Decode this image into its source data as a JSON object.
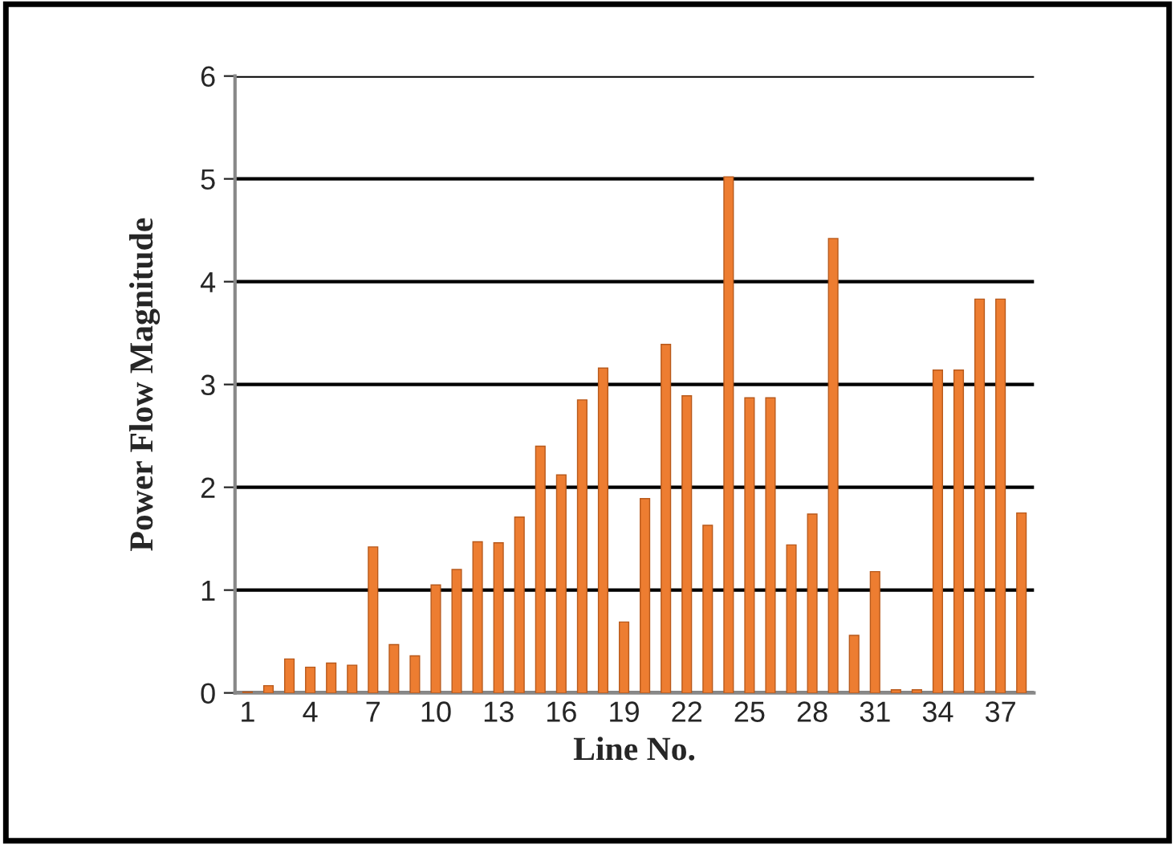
{
  "chart_data": {
    "type": "bar",
    "xlabel": "Line No.",
    "ylabel": "Power Flow Magnitude",
    "categories": [
      "1",
      null,
      null,
      "4",
      null,
      null,
      "7",
      null,
      null,
      "10",
      null,
      null,
      "13",
      null,
      null,
      "16",
      null,
      null,
      "19",
      null,
      null,
      "22",
      null,
      null,
      "25",
      null,
      null,
      "28",
      null,
      null,
      "31",
      null,
      null,
      "34",
      null,
      null,
      "37",
      null
    ],
    "values": [
      0.01,
      0.07,
      0.33,
      0.25,
      0.29,
      0.27,
      1.42,
      0.47,
      0.36,
      1.05,
      1.2,
      1.47,
      1.46,
      1.71,
      2.4,
      2.12,
      2.85,
      3.16,
      0.69,
      1.89,
      3.39,
      2.89,
      1.63,
      5.02,
      2.87,
      2.87,
      1.44,
      1.74,
      4.42,
      0.56,
      1.18,
      0.03,
      0.03,
      3.14,
      3.14,
      3.83,
      3.83,
      1.75
    ],
    "color": "#ed7d31",
    "ylim": [
      0,
      6
    ],
    "yticks": [
      0,
      1,
      2,
      3,
      4,
      5,
      6
    ],
    "grid": "y",
    "legend": false
  }
}
